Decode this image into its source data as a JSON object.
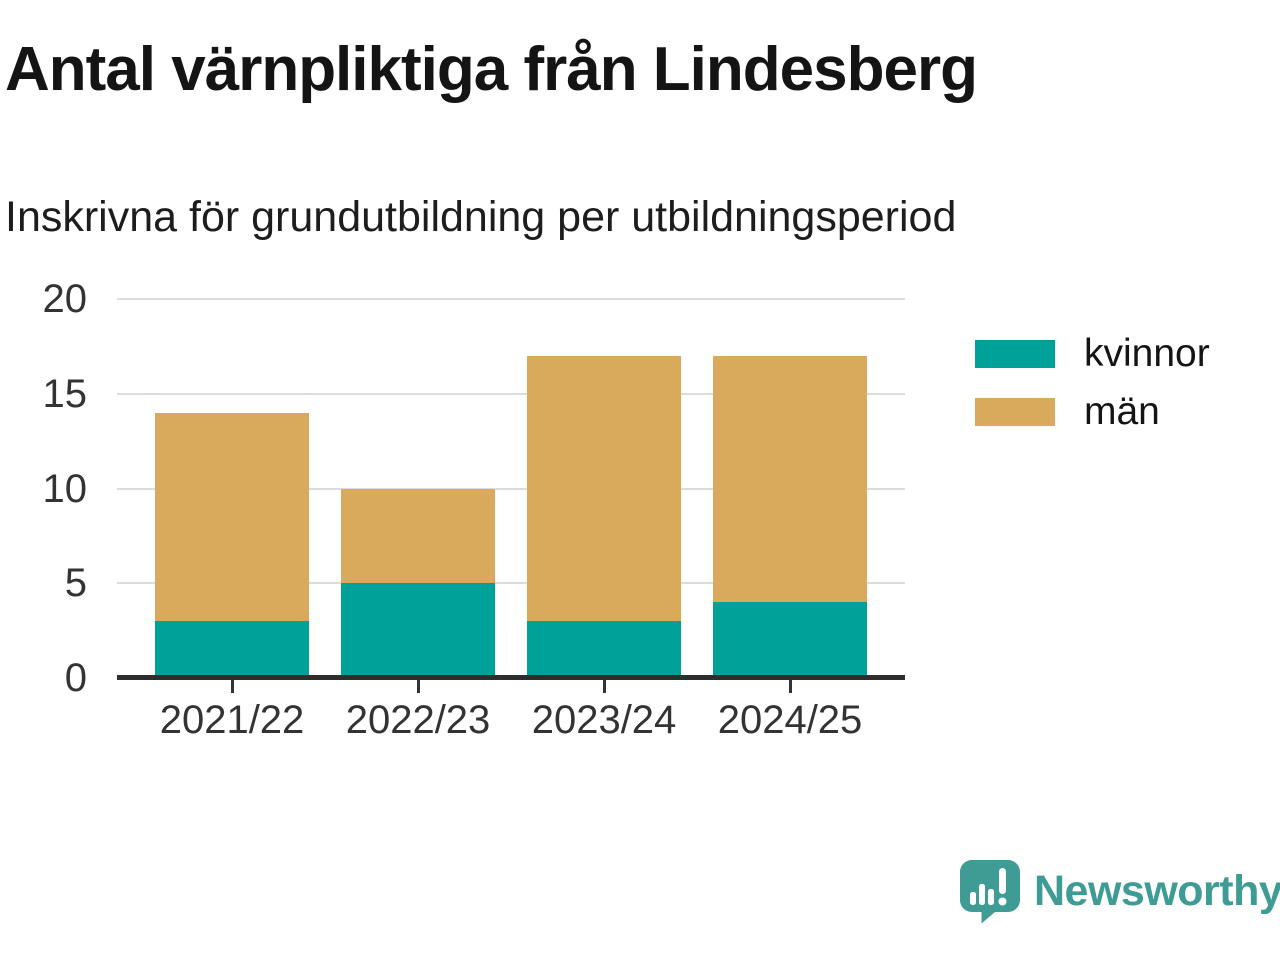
{
  "chart_data": {
    "type": "bar",
    "stacked": true,
    "title": "Antal värnpliktiga från Lindesberg",
    "subtitle": "Inskrivna för grundutbildning per utbildningsperiod",
    "categories": [
      "2021/22",
      "2022/23",
      "2023/24",
      "2024/25"
    ],
    "series": [
      {
        "name": "kvinnor",
        "color": "#00A199",
        "values": [
          3,
          5,
          3,
          4
        ]
      },
      {
        "name": "män",
        "color": "#D9A95C",
        "values": [
          11,
          5,
          14,
          13
        ]
      }
    ],
    "totals": [
      14,
      10,
      17,
      17
    ],
    "xlabel": "",
    "ylabel": "",
    "ylim": [
      0,
      20
    ],
    "yticks": [
      0,
      5,
      10,
      15,
      20
    ],
    "grid": "horizontal",
    "legend_position": "right"
  },
  "footer": {
    "brand": "Newsworthy"
  },
  "colors": {
    "kvinnor": "#00A199",
    "man": "#D9A95C",
    "brand": "#3F9C95",
    "grid": "#DCDCDC",
    "axis": "#2D2D2D",
    "title_text": "#141414",
    "tick_text": "#333333"
  }
}
